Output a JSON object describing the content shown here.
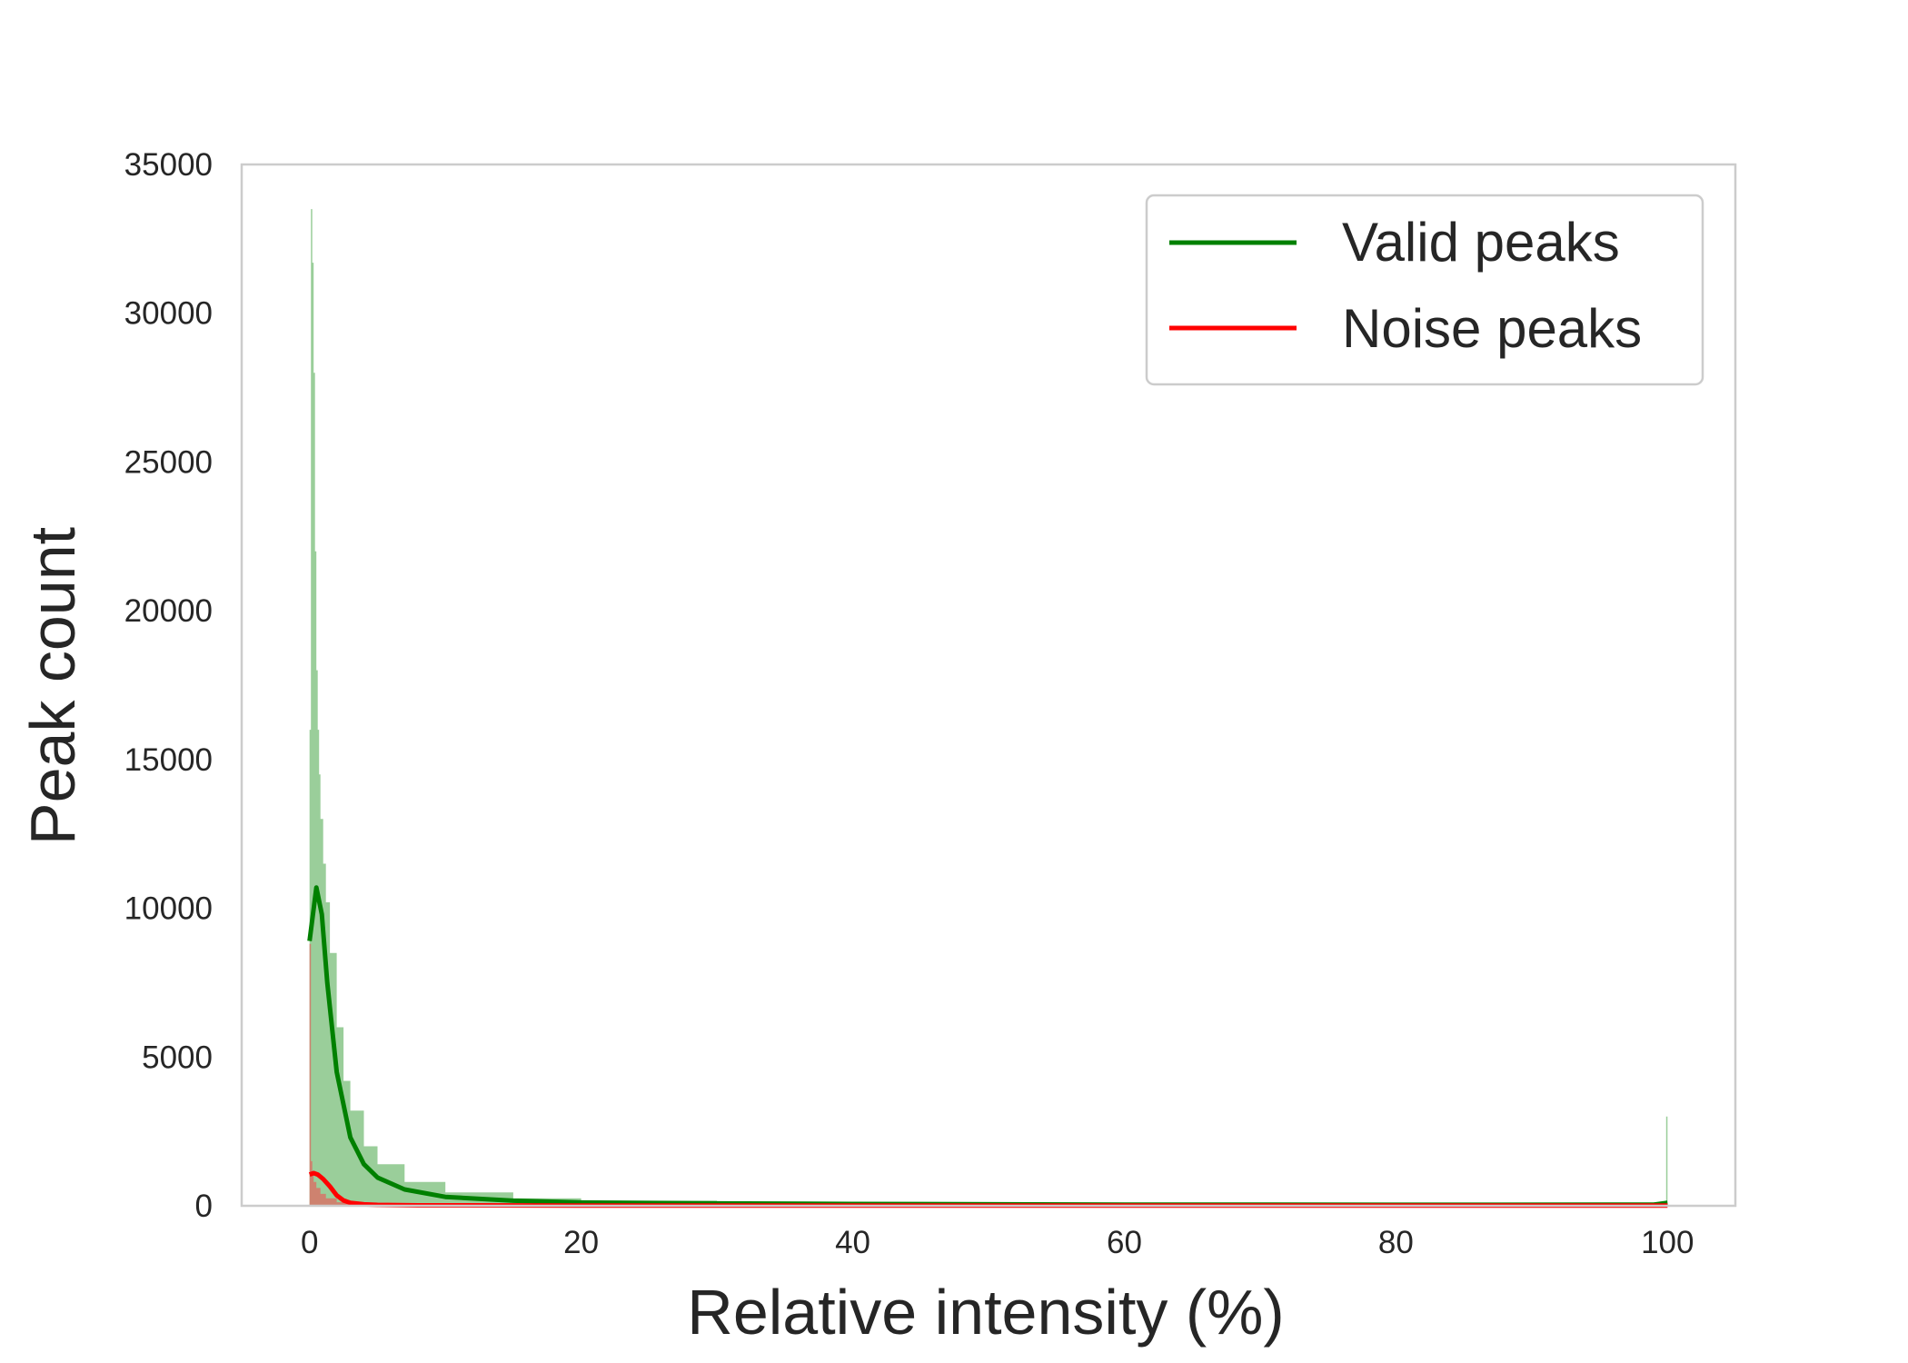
{
  "chart_data": {
    "type": "area",
    "xlabel": "Relative intensity (%)",
    "ylabel": "Peak count",
    "xlim": [
      -5,
      105
    ],
    "ylim": [
      0,
      35000
    ],
    "x_ticks": [
      0,
      20,
      40,
      60,
      80,
      100
    ],
    "y_ticks": [
      0,
      5000,
      10000,
      15000,
      20000,
      25000,
      30000,
      35000
    ],
    "grid": false,
    "legend_position": "top-right",
    "series": [
      {
        "name": "Valid peaks",
        "color": "#008000",
        "fill_color": "#8fc98f",
        "histogram": {
          "x": [
            0,
            0.1,
            0.2,
            0.3,
            0.4,
            0.5,
            0.6,
            0.7,
            0.8,
            1.0,
            1.2,
            1.5,
            2.0,
            2.5,
            3.0,
            4.0,
            5.0,
            7.0,
            10.0,
            15.0,
            20.0,
            30.0,
            40.0,
            60.0,
            80.0,
            99.0,
            99.9,
            100.0
          ],
          "y": [
            16000,
            33500,
            31700,
            28000,
            22000,
            18000,
            16000,
            14500,
            13000,
            11500,
            10200,
            8500,
            6000,
            4200,
            3200,
            2000,
            1400,
            800,
            450,
            250,
            170,
            110,
            80,
            60,
            50,
            60,
            3000,
            0
          ]
        },
        "kde": {
          "x": [
            0,
            0.5,
            0.9,
            1.3,
            2,
            3,
            4,
            5,
            7,
            10,
            15,
            20,
            30,
            40,
            60,
            80,
            99,
            100
          ],
          "y": [
            8900,
            10700,
            9800,
            7500,
            4500,
            2300,
            1400,
            950,
            550,
            300,
            170,
            110,
            80,
            60,
            40,
            35,
            40,
            100
          ]
        }
      },
      {
        "name": "Noise peaks",
        "color": "#ff0000",
        "fill_color": "#d47a6a",
        "histogram": {
          "x": [
            0,
            0.1,
            0.2,
            0.3,
            0.5,
            0.8,
            1.2,
            2.0,
            3.0,
            5.0,
            10.0,
            20.0,
            40.0,
            60.0,
            80.0,
            100.0
          ],
          "y": [
            8800,
            1500,
            1100,
            800,
            600,
            400,
            250,
            120,
            60,
            30,
            20,
            15,
            10,
            10,
            10,
            10
          ]
        },
        "kde": {
          "x": [
            0,
            0.3,
            0.6,
            1.0,
            1.5,
            2.0,
            2.5,
            3.0,
            4.0,
            5.0,
            8.0,
            20,
            40,
            60,
            80,
            100
          ],
          "y": [
            1050,
            1100,
            1050,
            900,
            650,
            350,
            180,
            100,
            50,
            30,
            15,
            10,
            8,
            8,
            8,
            5
          ]
        }
      }
    ]
  }
}
